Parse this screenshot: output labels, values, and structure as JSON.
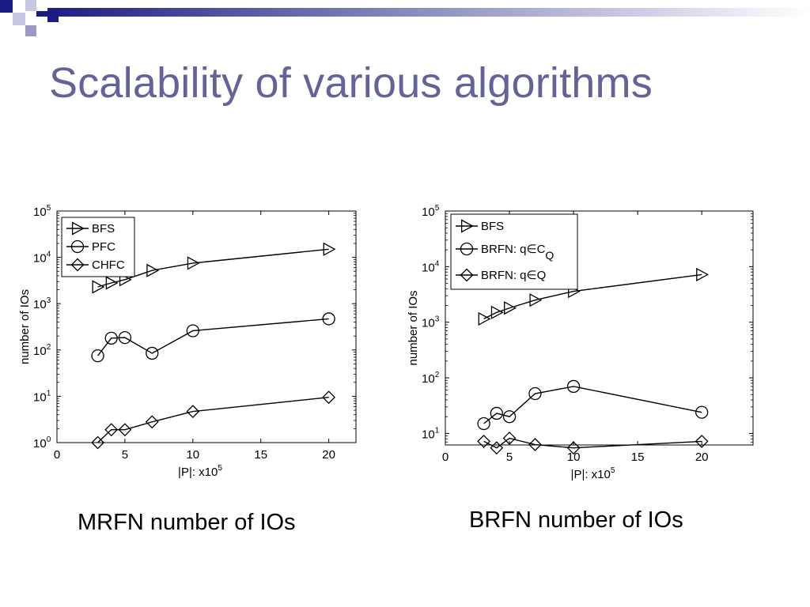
{
  "slide": {
    "title": "Scalability of various algorithms",
    "accent_color": "#636399",
    "decor_color": "#1a1a80"
  },
  "chart_data": [
    {
      "type": "line",
      "xlabel": "|P|: x10",
      "xlabel_sup": "5",
      "ylabel": "number of IOs",
      "xlim": [
        0,
        22
      ],
      "ylim": [
        1,
        100000
      ],
      "yscale": "log",
      "xticks": [
        0,
        5,
        10,
        15,
        20
      ],
      "yticks": [
        1,
        10,
        100,
        1000,
        10000,
        100000
      ],
      "ytick_exponents": [
        "0",
        "1",
        "2",
        "3",
        "4",
        "5"
      ],
      "legend_position": "top-left",
      "grid": false,
      "series": [
        {
          "name": "BFS",
          "marker": "triangle-right",
          "x": [
            3,
            4,
            5,
            7,
            10,
            20
          ],
          "y": [
            2300,
            2800,
            3300,
            5200,
            7500,
            15000
          ]
        },
        {
          "name": "PFC",
          "marker": "circle",
          "x": [
            3,
            4,
            5,
            7,
            10,
            20
          ],
          "y": [
            75,
            180,
            185,
            85,
            260,
            470
          ]
        },
        {
          "name": "CHFC",
          "marker": "diamond",
          "x": [
            3,
            4,
            5,
            7,
            10,
            20
          ],
          "y": [
            1,
            1.9,
            1.9,
            2.8,
            4.7,
            9.5
          ]
        }
      ],
      "caption": "MRFN number of IOs"
    },
    {
      "type": "line",
      "xlabel": "|P|:  x10",
      "xlabel_sup": "5",
      "ylabel": "number of IOs",
      "xlim": [
        0,
        24
      ],
      "ylim": [
        6.2,
        100000
      ],
      "yscale": "log",
      "xticks": [
        0,
        5,
        10,
        15,
        20
      ],
      "yticks": [
        10,
        100,
        1000,
        10000,
        100000
      ],
      "ytick_exponents": [
        "1",
        "2",
        "3",
        "4",
        "5"
      ],
      "legend_position": "top-left",
      "grid": false,
      "series": [
        {
          "name": "BFS",
          "marker": "triangle-right",
          "x": [
            3,
            4,
            5,
            7,
            10,
            20
          ],
          "y": [
            1150,
            1500,
            1800,
            2500,
            3600,
            7200
          ]
        },
        {
          "name": "BRFN: q∈C",
          "name_sub": "Q",
          "marker": "circle",
          "x": [
            3,
            4,
            5,
            7,
            10,
            20
          ],
          "y": [
            15,
            23,
            20,
            52,
            70,
            24
          ]
        },
        {
          "name": "BRFN: q∈Q",
          "marker": "diamond",
          "x": [
            3,
            4,
            5,
            7,
            10,
            20
          ],
          "y": [
            7.2,
            5.5,
            8.2,
            6.3,
            5.5,
            7.2
          ]
        }
      ],
      "caption": "BRFN number of IOs"
    }
  ]
}
